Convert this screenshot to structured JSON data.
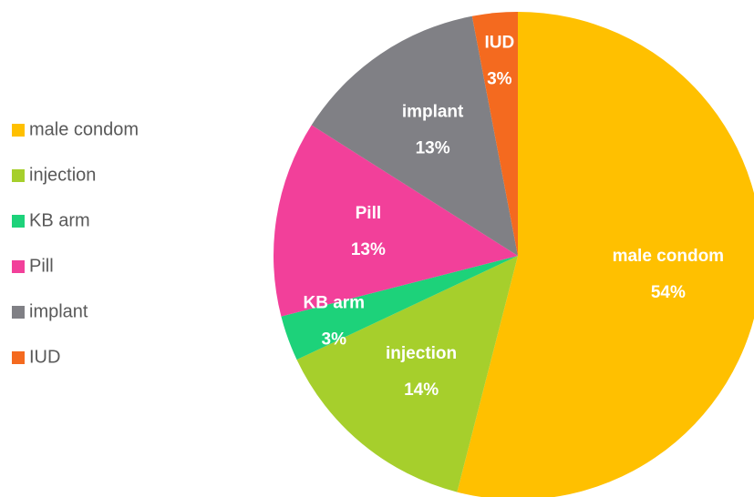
{
  "chart_data": {
    "type": "pie",
    "categories": [
      "male condom",
      "injection",
      "KB arm",
      "Pill",
      "implant",
      "IUD"
    ],
    "values": [
      54,
      14,
      3,
      13,
      13,
      3
    ],
    "value_labels": [
      "54%",
      "14%",
      "3%",
      "13%",
      "13%",
      "3%"
    ],
    "colors": [
      "#FFC000",
      "#A6CF2C",
      "#1DD27A",
      "#F2409A",
      "#808085",
      "#F46A1F"
    ],
    "legend": "left"
  }
}
